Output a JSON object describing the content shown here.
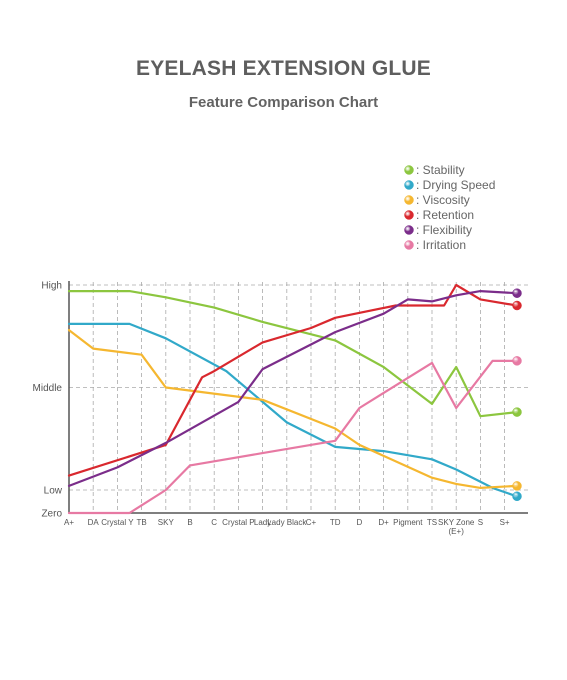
{
  "chart_data": {
    "type": "line",
    "title": "EYELASH EXTENSION  GLUE",
    "subtitle": "Feature Comparison Chart",
    "categories": [
      "A+",
      "DA",
      "Crystal Y",
      "TB",
      "SKY",
      "B",
      "C",
      "Crystal P",
      "Lady",
      "Lady Black",
      "C+",
      "TD",
      "D",
      "D+",
      "Pigment",
      "TS",
      "SKY Zone (E+)",
      "S",
      "S+"
    ],
    "y_levels": [
      {
        "label": "High",
        "value": 100
      },
      {
        "label": "Middle",
        "value": 50
      },
      {
        "label": "Low",
        "value": 0
      },
      {
        "label": "Zero",
        "value": -11
      }
    ],
    "ylim": [
      -11,
      100
    ],
    "grid": true,
    "legend_position": "top-right",
    "series": [
      {
        "name": ": Stability",
        "color": "#8cc63f",
        "x": [
          0,
          2.5,
          4,
          6,
          8,
          11,
          13,
          15,
          16,
          17,
          18.5
        ],
        "y": [
          97,
          97,
          94,
          89,
          82,
          73,
          60,
          42,
          60,
          36,
          38
        ]
      },
      {
        "name": ": Drying Speed",
        "color": "#31a9c9",
        "x": [
          0,
          2.5,
          4,
          6.5,
          9,
          11,
          13,
          15,
          16,
          17.5,
          18.5
        ],
        "y": [
          81,
          81,
          74,
          58,
          33,
          21,
          19,
          15,
          10,
          1,
          -3
        ]
      },
      {
        "name": ": Viscosity",
        "color": "#f5b730",
        "x": [
          0,
          1,
          3,
          4,
          8,
          11,
          12,
          15,
          16,
          17,
          18.5
        ],
        "y": [
          78,
          69,
          66,
          50,
          44,
          30,
          22,
          6,
          3,
          1,
          2
        ]
      },
      {
        "name": ": Retention",
        "color": "#d9282e",
        "x": [
          0,
          4,
          5.5,
          6,
          8,
          10,
          11,
          13.5,
          15.5,
          16,
          17,
          18.5
        ],
        "y": [
          7,
          22,
          55,
          58,
          72,
          79,
          84,
          90,
          90,
          100,
          93,
          90
        ]
      },
      {
        "name": ": Flexibility",
        "color": "#7b2d8a",
        "x": [
          0,
          2,
          4,
          7,
          8,
          11,
          13,
          14,
          15,
          16,
          17,
          18.5
        ],
        "y": [
          2,
          11,
          23,
          43,
          59,
          77,
          86,
          93,
          92,
          95,
          97,
          96
        ]
      },
      {
        "name": ": Irritation",
        "color": "#e779a3",
        "x": [
          0,
          2.5,
          4,
          5,
          8,
          11,
          12,
          15,
          16,
          17.5,
          18.5
        ],
        "y": [
          -11,
          -11,
          0,
          12,
          18,
          24,
          40,
          62,
          40,
          63,
          63
        ]
      }
    ],
    "end_markers": [
      {
        "series": ": Stability",
        "y": 38
      },
      {
        "series": ": Drying Speed",
        "y": -3
      },
      {
        "series": ": Viscosity",
        "y": 2
      },
      {
        "series": ": Retention",
        "y": 90
      },
      {
        "series": ": Flexibility",
        "y": 96
      },
      {
        "series": ": Irritation",
        "y": 63
      }
    ],
    "category_sublabels": {
      "SKY Zone (E+)": "(E+)"
    }
  }
}
